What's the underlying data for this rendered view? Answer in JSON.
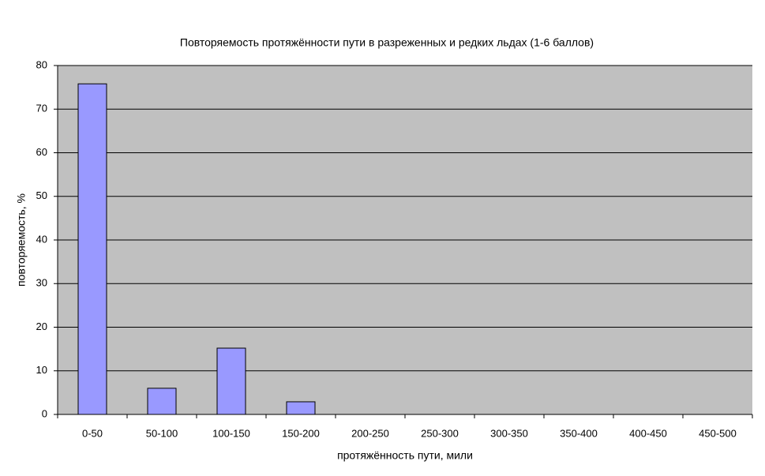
{
  "chart_data": {
    "type": "bar",
    "title": "Повторяемость протяжённости пути в разреженных и редких льдах (1-6 баллов)",
    "x_label": "протяжённость пути, мили",
    "y_label": "повторяемость, %",
    "categories": [
      "0-50",
      "50-100",
      "100-150",
      "150-200",
      "200-250",
      "250-300",
      "300-350",
      "350-400",
      "400-450",
      "450-500"
    ],
    "values": [
      75.8,
      6.0,
      15.2,
      2.9,
      0,
      0,
      0,
      0,
      0,
      0
    ],
    "color": "#9999ff",
    "ylim": [
      0,
      80
    ],
    "yticks": [
      0,
      10,
      20,
      30,
      40,
      50,
      60,
      70,
      80
    ],
    "grid": true
  }
}
